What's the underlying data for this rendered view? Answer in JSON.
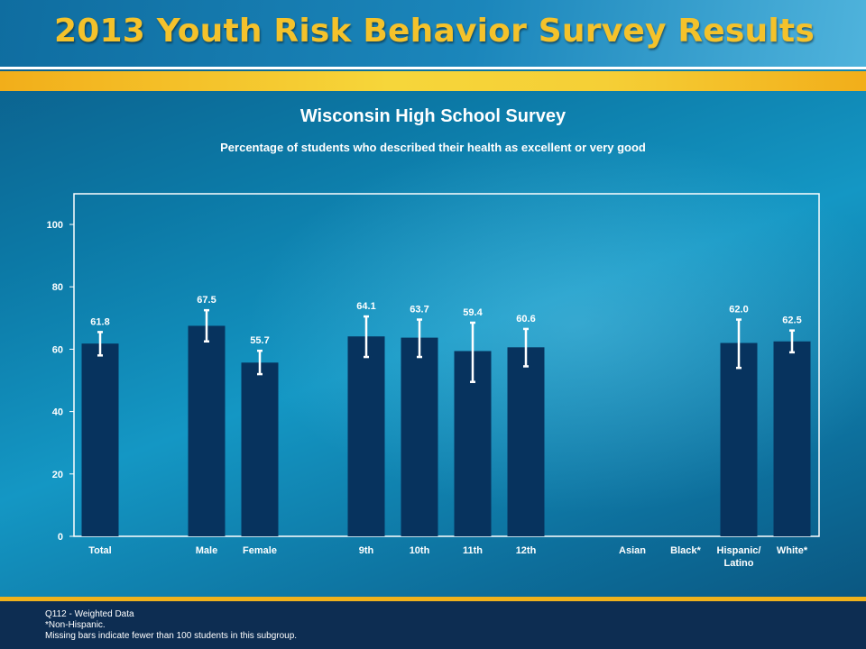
{
  "banner": {
    "title": "2013 Youth Risk Behavior Survey Results"
  },
  "chart_data": {
    "type": "bar",
    "title": "Wisconsin High School Survey",
    "subtitle": "Percentage of students who described their health as excellent or very good",
    "categories": [
      "Total",
      "Male",
      "Female",
      "9th",
      "10th",
      "11th",
      "12th",
      "Asian",
      "Black*",
      "Hispanic/ Latino",
      "White*"
    ],
    "values": [
      61.8,
      67.5,
      55.7,
      64.1,
      63.7,
      59.4,
      60.6,
      null,
      null,
      62.0,
      62.5
    ],
    "value_labels": [
      "61.8",
      "67.5",
      "55.7",
      "64.1",
      "63.7",
      "59.4",
      "60.6",
      "",
      "",
      "62.0",
      "62.5"
    ],
    "ci_low": [
      58.0,
      62.5,
      52.0,
      57.5,
      57.5,
      49.5,
      54.5,
      null,
      null,
      54.0,
      59.0
    ],
    "ci_high": [
      65.5,
      72.5,
      59.5,
      70.5,
      69.5,
      68.5,
      66.5,
      null,
      null,
      69.5,
      66.0
    ],
    "yticks": [
      0,
      20,
      40,
      60,
      80,
      100
    ],
    "ylim": [
      0,
      110
    ],
    "grid": false,
    "bar_color": "#07335e",
    "errorbar_color": "#ffffff"
  },
  "footer": {
    "line1": "Q112 - Weighted Data",
    "line2": "*Non-Hispanic.",
    "line3": "Missing bars indicate fewer than 100 students in this subgroup."
  }
}
